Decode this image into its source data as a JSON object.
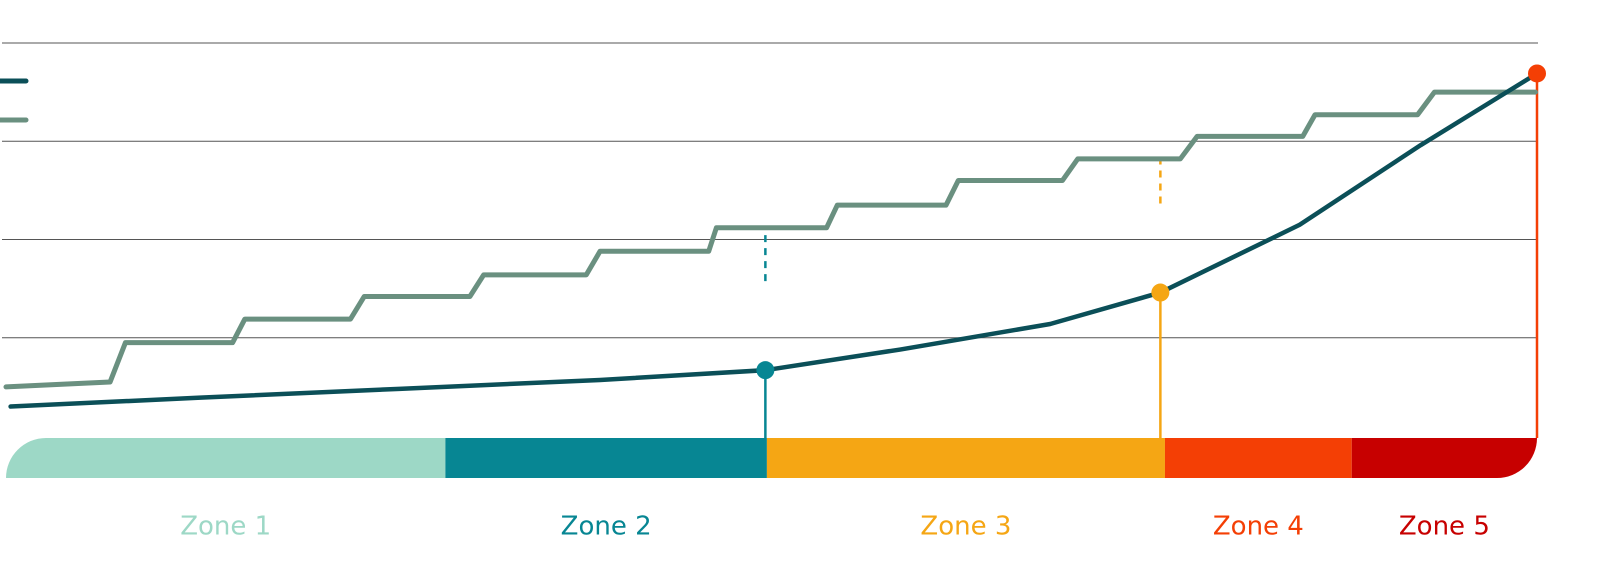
{
  "chart_data": {
    "type": "line",
    "xlim": [
      0,
      100
    ],
    "ylim": [
      0,
      4
    ],
    "yticks": [
      1,
      2,
      3,
      4
    ],
    "grid": true,
    "series": [
      {
        "color": "#0b4f58",
        "x": [
          0.3,
          12.7,
          25.7,
          38.8,
          49.6,
          58.4,
          68.2,
          75.4,
          84.5,
          92.4,
          100
        ],
        "values": [
          0.3,
          0.39,
          0.48,
          0.57,
          0.67,
          0.88,
          1.14,
          1.46,
          2.15,
          2.96,
          3.69
        ]
      },
      {
        "color": "#6a9080",
        "x": [
          0,
          6.8,
          7.8,
          14.8,
          15.6,
          22.5,
          23.4,
          30.3,
          31.2,
          37.9,
          38.8,
          45.9,
          46.4,
          53.6,
          54.3,
          61.4,
          62.2,
          69.0,
          70.0,
          76.7,
          77.8,
          84.7,
          85.5,
          92.2,
          93.3,
          99.9
        ],
        "values": [
          0.5,
          0.55,
          0.95,
          0.95,
          1.19,
          1.19,
          1.42,
          1.42,
          1.64,
          1.64,
          1.88,
          1.88,
          2.12,
          2.12,
          2.35,
          2.35,
          2.6,
          2.6,
          2.82,
          2.82,
          3.05,
          3.05,
          3.27,
          3.27,
          3.5,
          3.5
        ]
      }
    ],
    "markers": [
      {
        "x": 49.6,
        "y": 0.67,
        "color": "#078693",
        "dashed": true
      },
      {
        "x": 75.4,
        "y": 1.46,
        "color": "#f5a614",
        "dashed": true
      },
      {
        "x": 100,
        "y": 3.69,
        "color": "#f43f05",
        "dashed": false
      }
    ],
    "zones": [
      {
        "label": "Zone 1",
        "start": 0,
        "end": 28.7,
        "color": "#9dd8c6"
      },
      {
        "label": "Zone 2",
        "start": 28.7,
        "end": 49.7,
        "color": "#078693"
      },
      {
        "label": "Zone 3",
        "start": 49.7,
        "end": 75.7,
        "color": "#f5a614"
      },
      {
        "label": "Zone 4",
        "start": 75.7,
        "end": 87.9,
        "color": "#f43f05"
      },
      {
        "label": "Zone 5",
        "start": 87.9,
        "end": 100,
        "color": "#c70000"
      }
    ]
  }
}
